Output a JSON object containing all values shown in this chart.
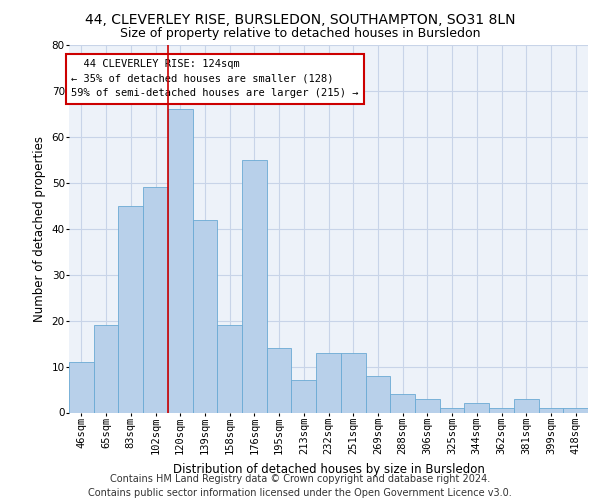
{
  "title1": "44, CLEVERLEY RISE, BURSLEDON, SOUTHAMPTON, SO31 8LN",
  "title2": "Size of property relative to detached houses in Bursledon",
  "xlabel": "Distribution of detached houses by size in Bursledon",
  "ylabel": "Number of detached properties",
  "footer1": "Contains HM Land Registry data © Crown copyright and database right 2024.",
  "footer2": "Contains public sector information licensed under the Open Government Licence v3.0.",
  "annotation_line1": "  44 CLEVERLEY RISE: 124sqm",
  "annotation_line2": "← 35% of detached houses are smaller (128)",
  "annotation_line3": "59% of semi-detached houses are larger (215) →",
  "categories": [
    "46sqm",
    "65sqm",
    "83sqm",
    "102sqm",
    "120sqm",
    "139sqm",
    "158sqm",
    "176sqm",
    "195sqm",
    "213sqm",
    "232sqm",
    "251sqm",
    "269sqm",
    "288sqm",
    "306sqm",
    "325sqm",
    "344sqm",
    "362sqm",
    "381sqm",
    "399sqm",
    "418sqm"
  ],
  "values": [
    11,
    19,
    45,
    49,
    66,
    42,
    19,
    55,
    14,
    7,
    13,
    13,
    8,
    4,
    3,
    1,
    2,
    1,
    3,
    1,
    1
  ],
  "bar_color": "#b8d0ea",
  "bar_edge_color": "#6aaad4",
  "vline_color": "#cc0000",
  "vline_pos": 3.5,
  "annotation_box_color": "#cc0000",
  "ylim": [
    0,
    80
  ],
  "yticks": [
    0,
    10,
    20,
    30,
    40,
    50,
    60,
    70,
    80
  ],
  "grid_color": "#c8d4e8",
  "bg_color": "#edf2f9",
  "title1_fontsize": 10,
  "title2_fontsize": 9,
  "xlabel_fontsize": 8.5,
  "ylabel_fontsize": 8.5,
  "tick_fontsize": 7.5,
  "ann_fontsize": 7.5,
  "footer_fontsize": 7.0
}
